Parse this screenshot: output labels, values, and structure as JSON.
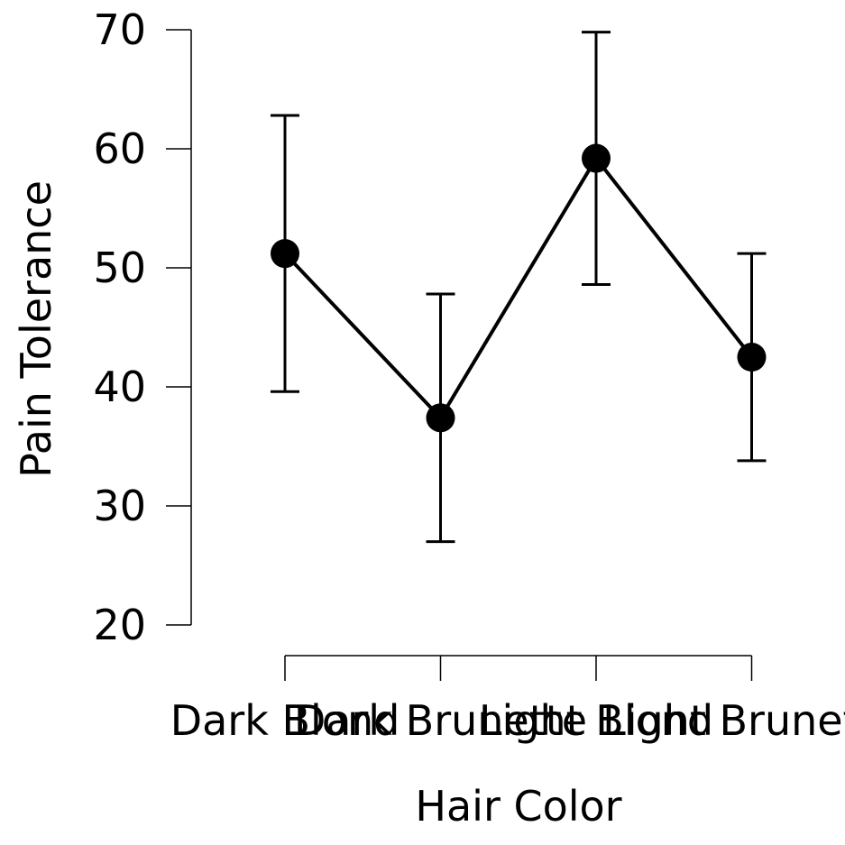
{
  "chart_data": {
    "type": "line",
    "title": "",
    "xlabel": "Hair Color",
    "ylabel": "Pain Tolerance",
    "categories": [
      "Dark Blond",
      "Dark Brunette",
      "Light Blond",
      "Light Brunette"
    ],
    "series": [
      {
        "values": [
          51.2,
          37.4,
          59.2,
          42.5
        ],
        "error_lower": [
          39.6,
          27.0,
          48.6,
          33.8
        ],
        "error_upper": [
          62.8,
          47.8,
          69.8,
          51.2
        ]
      }
    ],
    "ylim": [
      20,
      70
    ],
    "yticks": [
      "20",
      "30",
      "40",
      "50",
      "60",
      "70"
    ],
    "grid": false,
    "legend": "none",
    "colors": {
      "line": "#000000",
      "marker": "#000000",
      "axis": "#000000"
    }
  }
}
